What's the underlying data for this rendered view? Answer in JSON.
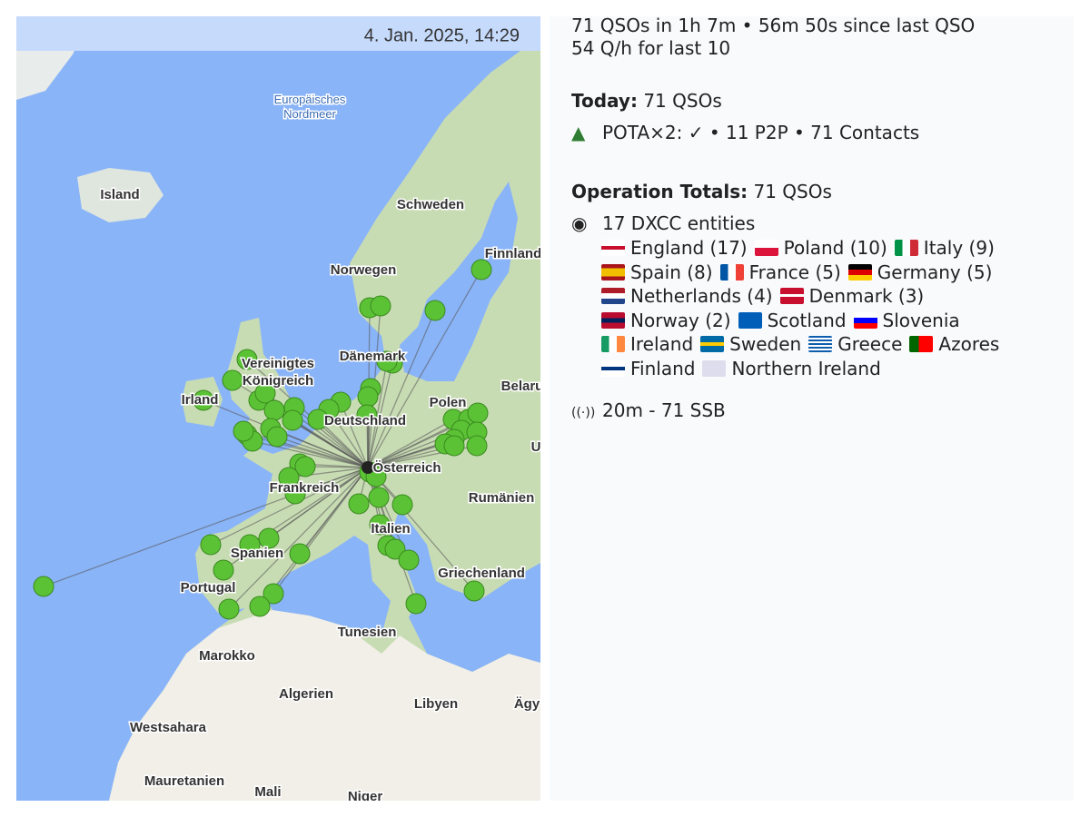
{
  "map": {
    "timestamp": "4. Jan. 2025, 14:29",
    "labels": [
      "Europäisches Nordmeer",
      "Island",
      "Schweden",
      "Finnland",
      "Norwegen",
      "Dänemark",
      "Vereinigtes Königreich",
      "Irland",
      "Polen",
      "Belaru",
      "Deutschland",
      "Österreich",
      "Frankreich",
      "Rumänien",
      "Italien",
      "Spanien",
      "Portugal",
      "Griechenland",
      "Tunesien",
      "Marokko",
      "Algerien",
      "Libyen",
      "Ägy",
      "Westsahara",
      "Mauretanien",
      "Mali",
      "Niger",
      "U"
    ]
  },
  "stats": {
    "summary": [
      "71 QSOs in 1h 7m • 56m 50s since last QSO",
      "54 Q/h for last 10"
    ],
    "today": {
      "label": "Today:",
      "text": "71 QSOs",
      "pota": "POTA×2: ✓ • 11 P2P • 71 Contacts"
    },
    "totals": {
      "label": "Operation Totals:",
      "text": "71 QSOs",
      "dxcc": "17 DXCC entities",
      "entities": [
        [
          "England (17)",
          "Poland (10)",
          "Italy (9)"
        ],
        [
          "Spain (8)",
          "France (5)",
          "Germany (5)"
        ],
        [
          "Netherlands (4)",
          "Denmark (3)"
        ],
        [
          "Norway (2)",
          "Scotland",
          "Slovenia"
        ],
        [
          "Ireland",
          "Sweden",
          "Greece",
          "Azores"
        ],
        [
          "Finland",
          "Northern Ireland"
        ]
      ],
      "bands": "20m - 71 SSB"
    }
  }
}
